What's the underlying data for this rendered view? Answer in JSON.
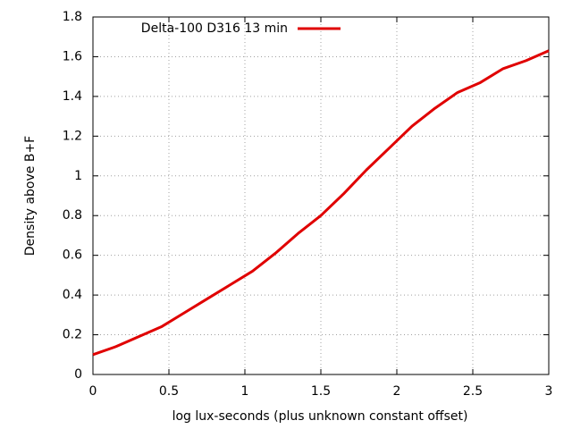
{
  "chart_data": {
    "type": "line",
    "x_label": "log lux-seconds (plus unknown constant offset)",
    "y_label": "Density above B+F",
    "x": [
      0,
      0.15,
      0.3,
      0.45,
      0.6,
      0.75,
      0.9,
      1.05,
      1.2,
      1.35,
      1.5,
      1.65,
      1.8,
      1.95,
      2.1,
      2.25,
      2.4,
      2.55,
      2.7,
      2.85,
      3
    ],
    "series": [
      {
        "name": "Delta-100 D316 13 min",
        "color": "#e00000",
        "values": [
          0.1,
          0.14,
          0.19,
          0.24,
          0.31,
          0.38,
          0.45,
          0.52,
          0.61,
          0.71,
          0.8,
          0.91,
          1.03,
          1.14,
          1.25,
          1.34,
          1.42,
          1.47,
          1.54,
          1.58,
          1.63
        ]
      }
    ],
    "xlim": [
      0,
      3
    ],
    "xticks": [
      0,
      0.5,
      1,
      1.5,
      2,
      2.5,
      3
    ],
    "ylim": [
      0,
      1.8
    ],
    "yticks": [
      0,
      0.2,
      0.4,
      0.6,
      0.8,
      1,
      1.2,
      1.4,
      1.6,
      1.8
    ],
    "grid": true,
    "legend": "top-left"
  }
}
